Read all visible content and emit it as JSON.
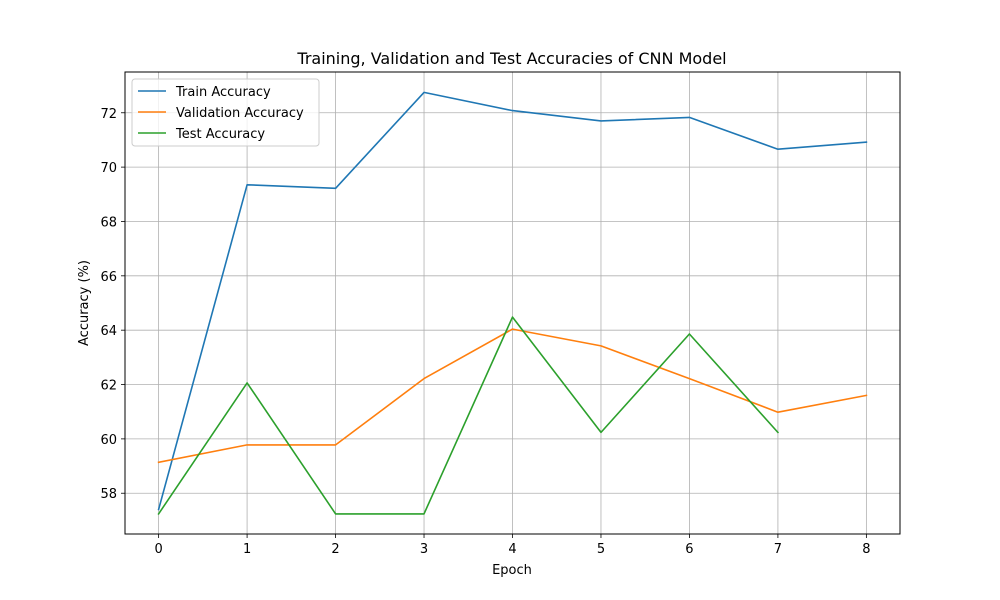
{
  "chart_data": {
    "type": "line",
    "title": "Training, Validation and Test Accuracies of CNN Model",
    "xlabel": "Epoch",
    "ylabel": "Accuracy (%)",
    "x": [
      0,
      1,
      2,
      3,
      4,
      5,
      6,
      7,
      8
    ],
    "xticks": [
      "0",
      "1",
      "2",
      "3",
      "4",
      "5",
      "6",
      "7",
      "8"
    ],
    "yticks": [
      "58",
      "60",
      "62",
      "64",
      "66",
      "68",
      "70",
      "72"
    ],
    "xlim": [
      -0.38,
      8.38
    ],
    "ylim": [
      56.5,
      73.5
    ],
    "grid": true,
    "legend_position": "top-left",
    "series": [
      {
        "name": "Train Accuracy",
        "color": "#1f77b4",
        "values": [
          57.4,
          69.35,
          69.22,
          72.75,
          72.08,
          71.7,
          71.83,
          70.66,
          70.92
        ]
      },
      {
        "name": "Validation Accuracy",
        "color": "#ff7f0e",
        "values": [
          59.14,
          59.78,
          59.78,
          62.22,
          64.04,
          63.42,
          62.22,
          60.98,
          61.6
        ]
      },
      {
        "name": "Test Accuracy",
        "color": "#2ca02c",
        "values": [
          57.24,
          62.06,
          57.24,
          57.24,
          64.48,
          60.24,
          63.86,
          60.24,
          null
        ]
      }
    ]
  }
}
